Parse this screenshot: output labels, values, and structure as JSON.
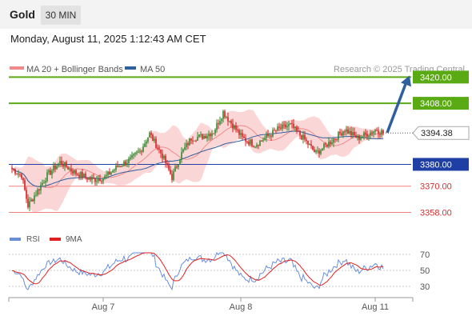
{
  "header": {
    "symbol": "Gold",
    "timeframe": "30 MIN",
    "datetime": "Monday, August 11, 2025 1:12:43 AM CET"
  },
  "legend": {
    "ma20_label": "MA 20 + Bollinger Bands",
    "ma50_label": "MA 50",
    "copyright": "Research © 2025 Trading Central",
    "rsi_label": "RSI",
    "rsi_ma_label": "9MA"
  },
  "colors": {
    "up_candle": "#2e8b2e",
    "down_candle": "#d42020",
    "bollinger_fill": "#fbd6d6",
    "ma20": "#f08a8a",
    "ma50": "#2f5f9f",
    "resistance": "#5aaa14",
    "support_blue": "#1f3fa5",
    "support_red": "#f08080",
    "arrow": "#2f5f9f",
    "rsi": "#6a8fd8",
    "rsi_ma": "#e02020"
  },
  "chart_data": {
    "type": "candlestick",
    "ylim": [
      3349,
      3426
    ],
    "x_labels": [
      "Aug 7",
      "Aug 8",
      "Aug 11"
    ],
    "current_price": 3394.38,
    "current_price_label": "3394.38",
    "levels": [
      {
        "value": 3420.0,
        "label": "3420.00",
        "kind": "resistance"
      },
      {
        "value": 3408.0,
        "label": "3408.00",
        "kind": "resistance"
      },
      {
        "value": 3380.0,
        "label": "3380.00",
        "kind": "support-blue"
      },
      {
        "value": 3370.0,
        "label": "3370.00",
        "kind": "support-red"
      },
      {
        "value": 3358.0,
        "label": "3358.00",
        "kind": "support-red"
      }
    ],
    "forecast_arrow": {
      "from": 3394.5,
      "to": 3420.0
    },
    "rsi": {
      "ylim": [
        20,
        80
      ],
      "ticks": [
        70,
        50,
        30
      ],
      "tick_labels": [
        "70",
        "50",
        "30"
      ]
    }
  }
}
